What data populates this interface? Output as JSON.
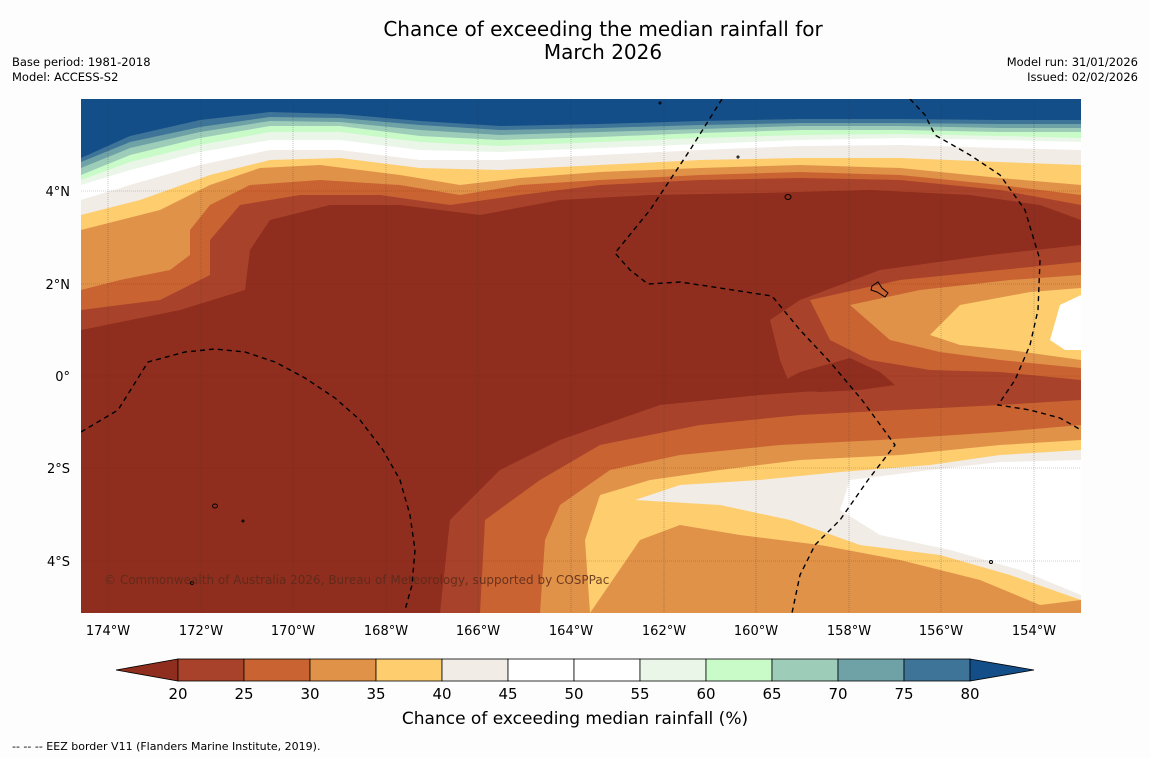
{
  "title_line1": "Chance of exceeding the median rainfall for",
  "title_line2": "March 2026",
  "base_period": "Base period: 1981-2018",
  "model": "Model: ACCESS-S2",
  "model_run": "Model run: 31/01/2026",
  "issued": "Issued: 02/02/2026",
  "copyright": "© Commonwealth of Australia 2026, Bureau of Meteorology, supported by COSPPac",
  "lon_labels": [
    "174°W",
    "172°W",
    "170°W",
    "168°W",
    "166°W",
    "164°W",
    "162°W",
    "160°W",
    "158°W",
    "156°W",
    "154°W"
  ],
  "lat_labels": [
    "4°N",
    "2°N",
    "0°",
    "2°S",
    "4°S"
  ],
  "colorbar": {
    "label": "Chance of exceeding median rainfall (%)",
    "ticks": [
      "20",
      "25",
      "30",
      "35",
      "40",
      "45",
      "50",
      "55",
      "60",
      "65",
      "70",
      "75",
      "80"
    ],
    "colors": {
      "below20": "#8f2e1e",
      "c20_25": "#a9422a",
      "c25_30": "#c96432",
      "c30_35": "#e09249",
      "c35_40": "#fdcd6e",
      "c40_45": "#f1ece6",
      "c45_50": "#ffffff",
      "c50_55": "#ffffff",
      "c55_60": "#eaf6e8",
      "c60_65": "#c8fbc8",
      "c65_70": "#9dcdb8",
      "c70_75": "#6ea2a6",
      "c75_80": "#3e7498",
      "above80": "#134e88"
    }
  },
  "footer": "--  --  -- EEZ border V11 (Flanders Marine Institute, 2019)."
}
